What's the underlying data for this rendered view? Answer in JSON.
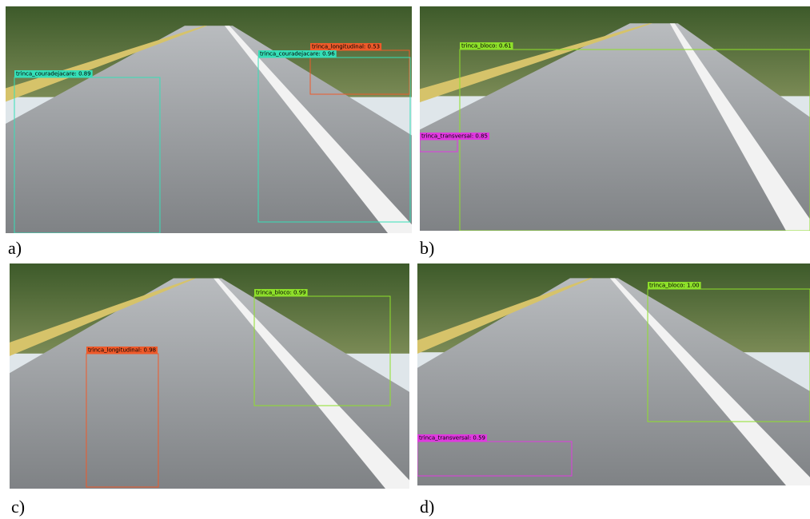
{
  "panels": [
    {
      "label": "a)",
      "detections": [
        {
          "label": "trinca_couradejacare: 0.89"
        },
        {
          "label": "trinca_longitudinal: 0.53"
        },
        {
          "label": "trinca_couradejacare: 0.96"
        }
      ]
    },
    {
      "label": "b)",
      "detections": [
        {
          "label": "trinca_bloco: 0.61"
        },
        {
          "label": "trinca_transversal: 0.85"
        }
      ]
    },
    {
      "label": "c)",
      "detections": [
        {
          "label": "trinca_bloco: 0.99"
        },
        {
          "label": "trinca_longitudinal: 0.98"
        }
      ]
    },
    {
      "label": "d)",
      "detections": [
        {
          "label": "trinca_bloco: 1.00"
        },
        {
          "label": "trinca_transversal: 0.59"
        }
      ]
    }
  ]
}
